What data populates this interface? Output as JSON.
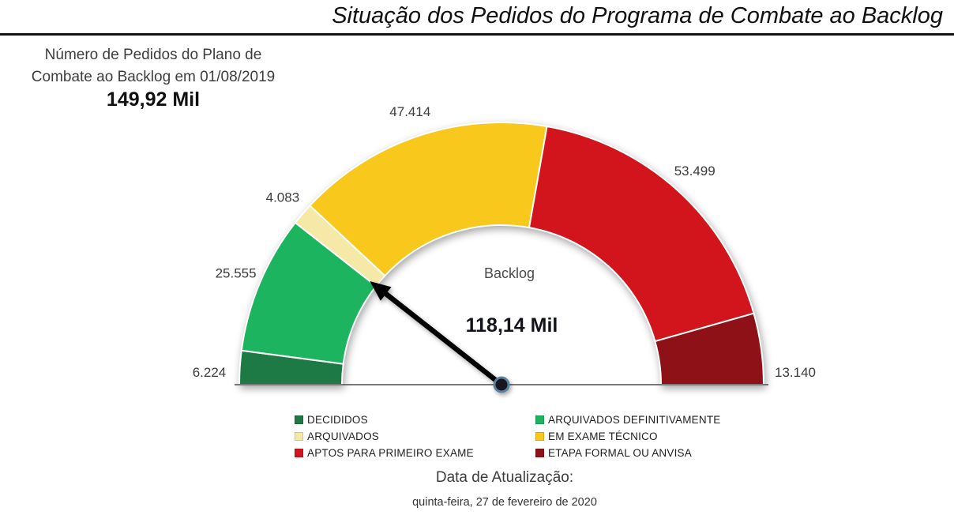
{
  "page": {
    "title": "Situação dos Pedidos do Programa de Combate ao Backlog"
  },
  "summary": {
    "caption_line1": "Número de Pedidos do Plano de",
    "caption_line2": "Combate ao Backlog em 01/08/2019",
    "total_label": "149,92 Mil"
  },
  "chart_data": {
    "type": "gauge",
    "title": "Situação dos Pedidos do Programa de Combate ao Backlog",
    "center_label": "Backlog",
    "needle_label": "118,14 Mil",
    "needle_value": 118136,
    "total": 149915,
    "total_display": "149,92 Mil",
    "angle_range_deg": [
      0,
      180
    ],
    "legend_position": "bottom",
    "segments": [
      {
        "label": "DECIDIDOS",
        "value": 6224,
        "display": "6.224",
        "color": "#1e7a44"
      },
      {
        "label": "ARQUIVADOS DEFINITIVAMENTE",
        "value": 25555,
        "display": "25.555",
        "color": "#1db45f"
      },
      {
        "label": "ARQUIVADOS",
        "value": 4083,
        "display": "4.083",
        "color": "#f6e8a6"
      },
      {
        "label": "EM EXAME TÉCNICO",
        "value": 47414,
        "display": "47.414",
        "color": "#f8c81c"
      },
      {
        "label": "APTOS PARA PRIMEIRO EXAME",
        "value": 53499,
        "display": "53.499",
        "color": "#d2151d"
      },
      {
        "label": "ETAPA FORMAL OU ANVISA",
        "value": 13140,
        "display": "13.140",
        "color": "#8e1118"
      }
    ]
  },
  "footer": {
    "update_label": "Data de Atualização:",
    "update_date": "quinta-feira, 27 de fevereiro de 2020"
  }
}
